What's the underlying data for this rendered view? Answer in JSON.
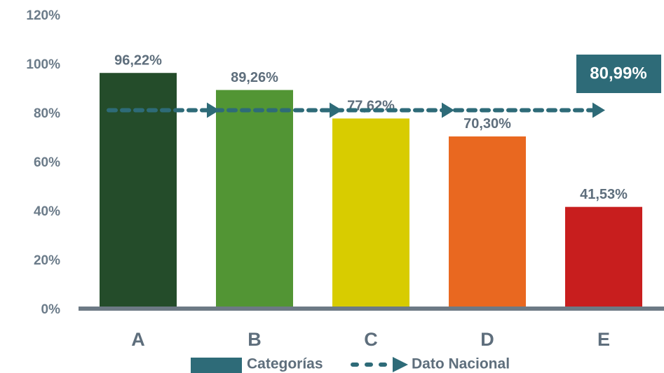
{
  "chart_data": {
    "type": "bar",
    "series_name": "Categorías",
    "series_color": "#2e6b78",
    "categories": [
      "A",
      "B",
      "C",
      "D",
      "E"
    ],
    "values": [
      96.22,
      89.26,
      77.62,
      70.3,
      41.53
    ],
    "value_labels": [
      "96,22%",
      "89,26%",
      "77,62%",
      "70,30%",
      "41,53%"
    ],
    "colors": [
      "#244c2a",
      "#529534",
      "#d8cc00",
      "#e96820",
      "#c81e1e"
    ],
    "ylim": [
      0,
      120
    ],
    "yticks": [
      {
        "value": 0,
        "label": "0%"
      },
      {
        "value": 20,
        "label": "20%"
      },
      {
        "value": 40,
        "label": "40%"
      },
      {
        "value": 60,
        "label": "60%"
      },
      {
        "value": 80,
        "label": "80%"
      },
      {
        "value": 100,
        "label": "100%"
      },
      {
        "value": 120,
        "label": "120%"
      }
    ],
    "reference": {
      "name": "Dato Nacional",
      "value": 80.99,
      "label": "80,99%",
      "color": "#2e6b78"
    }
  }
}
